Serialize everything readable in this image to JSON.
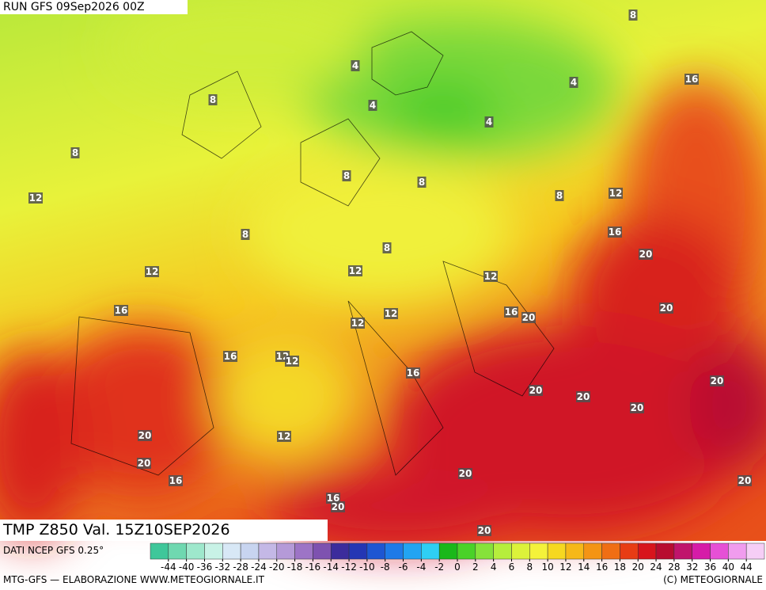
{
  "header": {
    "run": "RUN GFS 09Sep2026 00Z"
  },
  "map": {
    "title": "TMP Z850 Val. 15Z10SEP2026",
    "contour_labels": [
      4,
      4,
      4,
      4,
      8,
      16,
      8,
      8,
      12,
      8,
      8,
      8,
      12,
      8,
      16,
      8,
      20,
      12,
      12,
      12,
      16,
      12,
      12,
      16,
      20,
      20,
      16,
      12,
      12,
      16,
      20,
      20,
      20,
      20,
      12,
      20,
      20,
      16,
      20,
      20,
      16,
      20,
      20
    ]
  },
  "colorbar": {
    "source": "DATI NCEP GFS 0.25°",
    "labels": [
      -44,
      -40,
      -36,
      -32,
      -28,
      -24,
      -20,
      -18,
      -16,
      -14,
      -12,
      -10,
      -8,
      -6,
      -4,
      -2,
      0,
      2,
      4,
      6,
      8,
      10,
      12,
      14,
      16,
      18,
      20,
      24,
      28,
      32,
      36,
      40,
      44
    ],
    "colors": [
      "#3fc79a",
      "#6fd8b0",
      "#9ee8cc",
      "#c8f2e6",
      "#d8e8f6",
      "#c8d4f0",
      "#c4b8e6",
      "#b59ad8",
      "#9d74c6",
      "#7e52b0",
      "#3c2c9c",
      "#2436b4",
      "#1e56d2",
      "#1e7ae8",
      "#22a4f2",
      "#2ecff4",
      "#1ab81a",
      "#4ad228",
      "#86e23a",
      "#b6ee3c",
      "#dcf23a",
      "#f4f23a",
      "#f6d820",
      "#f6b818",
      "#f49414",
      "#f06e14",
      "#e83c14",
      "#d8141c",
      "#b80c30",
      "#c0146c",
      "#d61ca8",
      "#e650d6",
      "#f09cee",
      "#f6cef6"
    ]
  },
  "footer": {
    "left": "MTG-GFS — ELABORAZIONE WWW.METEOGIORNALE.IT",
    "right": "(C) METEOGIORNALE"
  }
}
